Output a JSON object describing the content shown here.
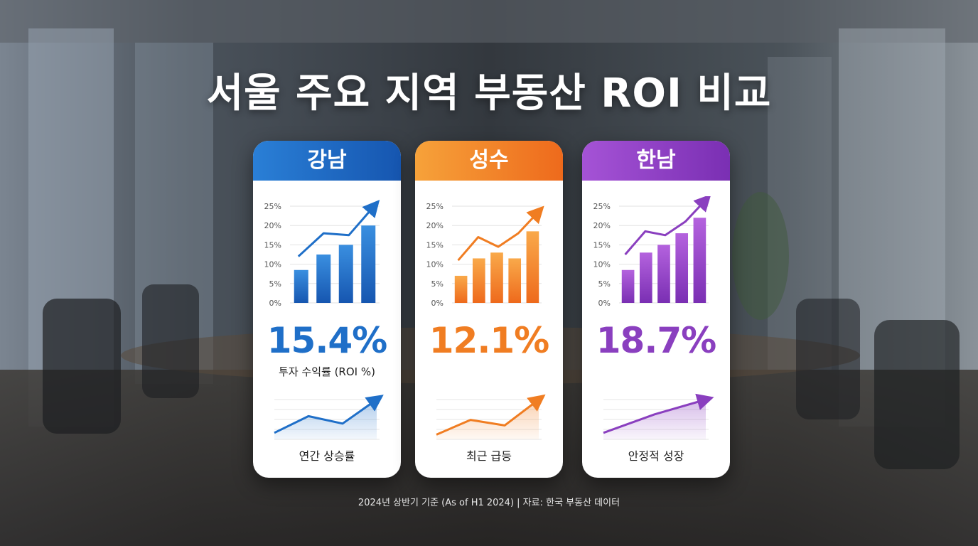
{
  "title": "서울 주요 지역 부동산 ROI 비교",
  "footer": "2024년 상반기 기준 (As of H1 2024) | 자료: 한국 부동산 데이터",
  "y_ticks": [
    "25%",
    "20%",
    "15%",
    "10%",
    "5%",
    "0%"
  ],
  "roi_label": "투자 수익률 (ROI %)",
  "chart_data": [
    {
      "type": "bar",
      "title": "강남",
      "ylim": [
        0,
        25
      ],
      "values": [
        8.5,
        12.5,
        15,
        20
      ],
      "trend_line": [
        12,
        18,
        17.5,
        25
      ],
      "roi_value": "15.4%",
      "trend_values": [
        0.1,
        0.55,
        0.35,
        1.0
      ],
      "trend_label": "연간 상승률",
      "color": "#1f6fc8",
      "header_gradient": [
        "#2a7fd6",
        "#1656b0"
      ],
      "bar_gradient": [
        "#3a8fe0",
        "#1656b0"
      ]
    },
    {
      "type": "bar",
      "title": "성수",
      "ylim": [
        0,
        25
      ],
      "values": [
        7,
        11.5,
        13,
        11.5,
        18.5
      ],
      "trend_line": [
        11,
        17,
        14.5,
        18,
        23.5
      ],
      "roi_value": "12.1%",
      "trend_values": [
        0.05,
        0.45,
        0.3,
        1.0
      ],
      "trend_label": "최근 급등",
      "color": "#f07d22",
      "header_gradient": [
        "#f6a23a",
        "#ee6a1c"
      ],
      "bar_gradient": [
        "#f9a94a",
        "#ee6a1c"
      ]
    },
    {
      "type": "bar",
      "title": "한남",
      "ylim": [
        0,
        25
      ],
      "values": [
        8.5,
        13,
        15,
        18,
        22
      ],
      "trend_line": [
        12.5,
        18.5,
        17.5,
        21,
        26.5
      ],
      "roi_value": "18.7%",
      "trend_values": [
        0.1,
        0.6,
        1.0
      ],
      "trend_label": "안정적 성장",
      "color": "#8a3fbf",
      "header_gradient": [
        "#a553d6",
        "#7a2fb3"
      ],
      "bar_gradient": [
        "#b462de",
        "#7a2fb3"
      ]
    }
  ]
}
